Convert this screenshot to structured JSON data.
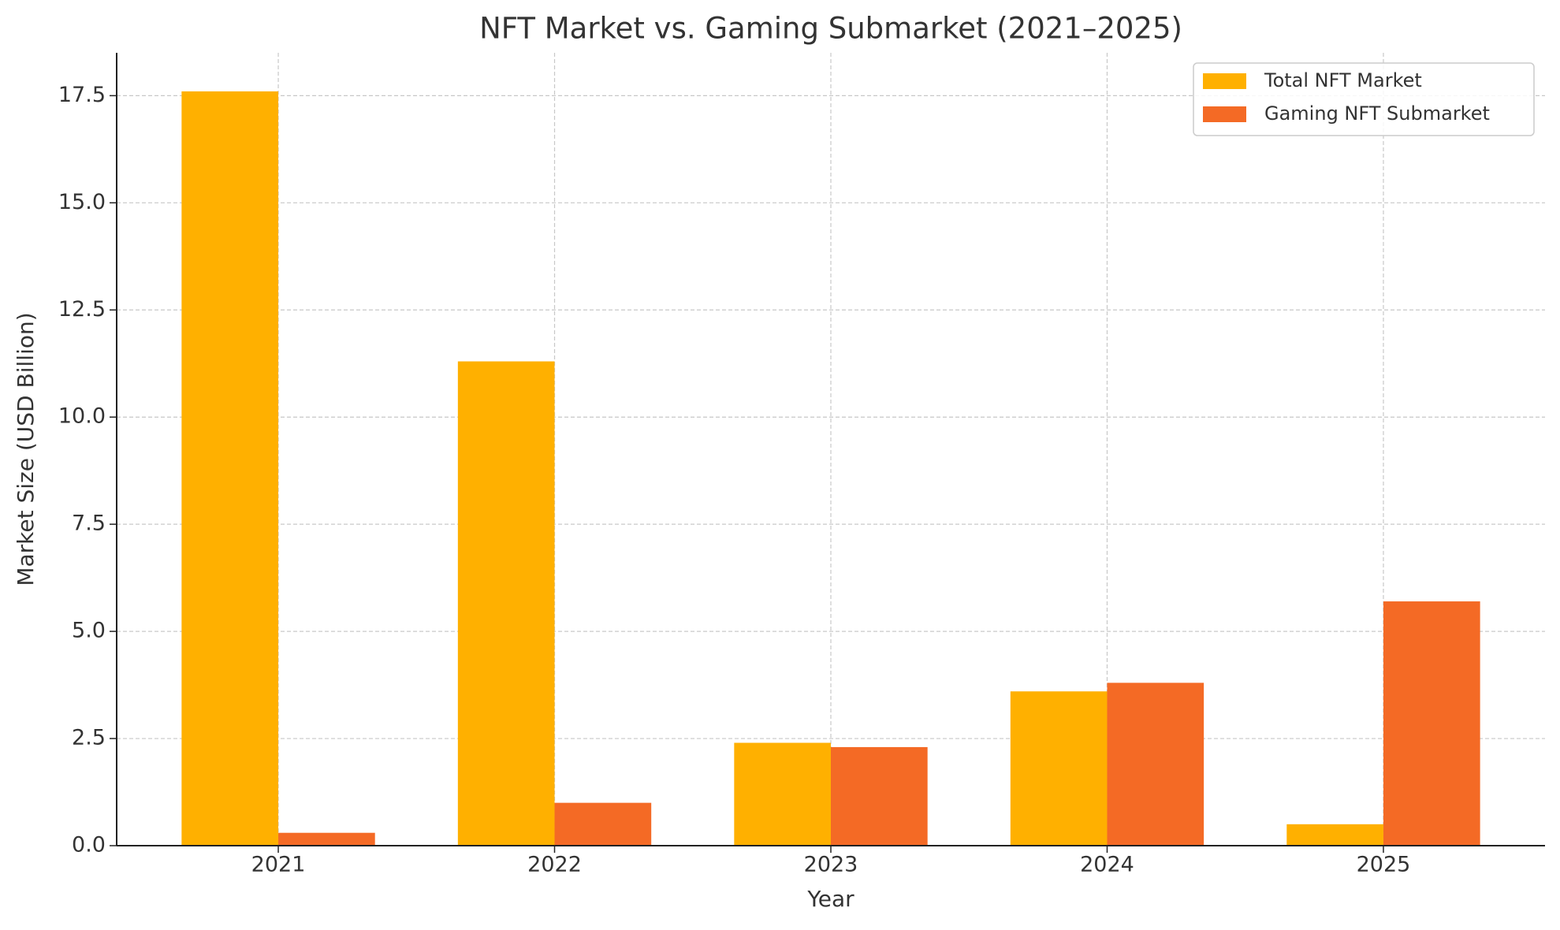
{
  "chart_data": {
    "type": "bar",
    "title": "NFT Market vs. Gaming Submarket (2021–2025)",
    "x_label": "Year",
    "y_label": "Market Size (USD Billion)",
    "categories": [
      "2021",
      "2022",
      "2023",
      "2024",
      "2025"
    ],
    "series": [
      {
        "name": "Total NFT Market",
        "color": "#FFB000",
        "values": [
          17.6,
          11.3,
          2.4,
          3.6,
          0.5
        ]
      },
      {
        "name": "Gaming NFT Submarket",
        "color": "#F46A25",
        "values": [
          0.3,
          1.0,
          2.3,
          3.8,
          5.7
        ]
      }
    ],
    "ylim": [
      0,
      18.5
    ],
    "yticks": [
      {
        "value": 0,
        "label": "0.0"
      },
      2.5,
      {
        "value": 5,
        "label": "5.0"
      },
      7.5,
      {
        "value": 10,
        "label": "10.0"
      },
      12.5,
      {
        "value": 15,
        "label": "15.0"
      },
      17.5
    ],
    "grid": true,
    "legend": "upper right"
  }
}
